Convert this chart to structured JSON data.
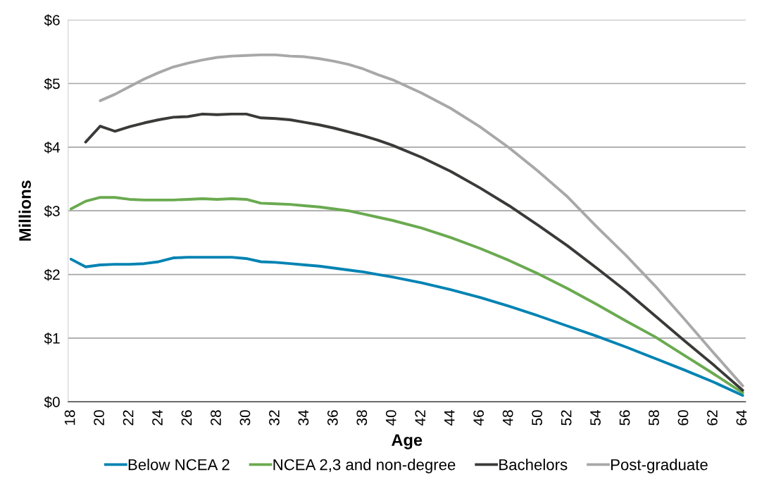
{
  "chart_data": {
    "type": "line",
    "xlabel": "Age",
    "ylabel": "Millions",
    "xlim": [
      17.8,
      64.2
    ],
    "xticks": [
      18,
      20,
      22,
      24,
      26,
      28,
      30,
      32,
      34,
      36,
      38,
      40,
      42,
      44,
      46,
      48,
      50,
      52,
      54,
      56,
      58,
      60,
      62,
      64
    ],
    "ylim": [
      0,
      6
    ],
    "yticks": [
      {
        "value": 0,
        "label": "$0"
      },
      {
        "value": 1,
        "label": "$1"
      },
      {
        "value": 2,
        "label": "$2"
      },
      {
        "value": 3,
        "label": "$3"
      },
      {
        "value": 4,
        "label": "$4"
      },
      {
        "value": 5,
        "label": "$5"
      },
      {
        "value": 6,
        "label": "$6"
      }
    ],
    "grid": "y",
    "legend": "bottom",
    "marker": "none",
    "line_style": "solid",
    "series": [
      {
        "name": "Below NCEA 2",
        "color": "#0083b3",
        "x": [
          18,
          19,
          20,
          21,
          22,
          23,
          24,
          25,
          26,
          27,
          28,
          29,
          30,
          31,
          32,
          33,
          34,
          35,
          36,
          37,
          38,
          39,
          40,
          42,
          44,
          46,
          48,
          50,
          52,
          54,
          56,
          58,
          60,
          62,
          64
        ],
        "values": [
          2.24,
          2.12,
          2.15,
          2.16,
          2.16,
          2.17,
          2.2,
          2.26,
          2.27,
          2.27,
          2.27,
          2.27,
          2.25,
          2.2,
          2.19,
          2.17,
          2.15,
          2.13,
          2.1,
          2.07,
          2.04,
          2.0,
          1.96,
          1.87,
          1.76,
          1.64,
          1.5,
          1.35,
          1.19,
          1.03,
          0.86,
          0.68,
          0.5,
          0.31,
          0.1
        ]
      },
      {
        "name": "NCEA 2,3 and non-degree",
        "color": "#6aaa50",
        "x": [
          18,
          19,
          20,
          21,
          22,
          23,
          24,
          25,
          26,
          27,
          28,
          29,
          30,
          31,
          32,
          33,
          34,
          35,
          36,
          37,
          38,
          39,
          40,
          42,
          44,
          46,
          48,
          50,
          52,
          54,
          56,
          58,
          60,
          62,
          64
        ],
        "values": [
          3.03,
          3.15,
          3.21,
          3.21,
          3.18,
          3.17,
          3.17,
          3.17,
          3.18,
          3.19,
          3.18,
          3.19,
          3.18,
          3.12,
          3.11,
          3.1,
          3.08,
          3.06,
          3.03,
          3.0,
          2.95,
          2.9,
          2.85,
          2.73,
          2.58,
          2.41,
          2.22,
          2.01,
          1.78,
          1.53,
          1.27,
          1.02,
          0.73,
          0.44,
          0.14
        ]
      },
      {
        "name": "Bachelors",
        "color": "#3a3b38",
        "x": [
          19,
          20,
          21,
          22,
          23,
          24,
          25,
          26,
          27,
          28,
          29,
          30,
          31,
          32,
          33,
          34,
          35,
          36,
          37,
          38,
          39,
          40,
          42,
          44,
          46,
          48,
          50,
          52,
          54,
          56,
          58,
          60,
          62,
          64
        ],
        "values": [
          4.08,
          4.33,
          4.25,
          4.32,
          4.38,
          4.43,
          4.47,
          4.48,
          4.52,
          4.51,
          4.52,
          4.52,
          4.46,
          4.45,
          4.43,
          4.39,
          4.35,
          4.3,
          4.24,
          4.18,
          4.11,
          4.03,
          3.84,
          3.62,
          3.36,
          3.08,
          2.77,
          2.45,
          2.1,
          1.74,
          1.35,
          0.96,
          0.58,
          0.18
        ]
      },
      {
        "name": "Post-graduate",
        "color": "#a8a8a8",
        "x": [
          20,
          21,
          22,
          23,
          24,
          25,
          26,
          27,
          28,
          29,
          30,
          31,
          32,
          33,
          34,
          35,
          36,
          37,
          38,
          39,
          40,
          42,
          44,
          46,
          48,
          50,
          52,
          54,
          56,
          58,
          60,
          62,
          64
        ],
        "values": [
          4.73,
          4.83,
          4.95,
          5.07,
          5.17,
          5.26,
          5.32,
          5.37,
          5.41,
          5.43,
          5.44,
          5.45,
          5.45,
          5.43,
          5.42,
          5.39,
          5.35,
          5.3,
          5.23,
          5.14,
          5.06,
          4.85,
          4.61,
          4.32,
          3.99,
          3.62,
          3.22,
          2.75,
          2.3,
          1.82,
          1.3,
          0.77,
          0.25
        ]
      }
    ]
  }
}
